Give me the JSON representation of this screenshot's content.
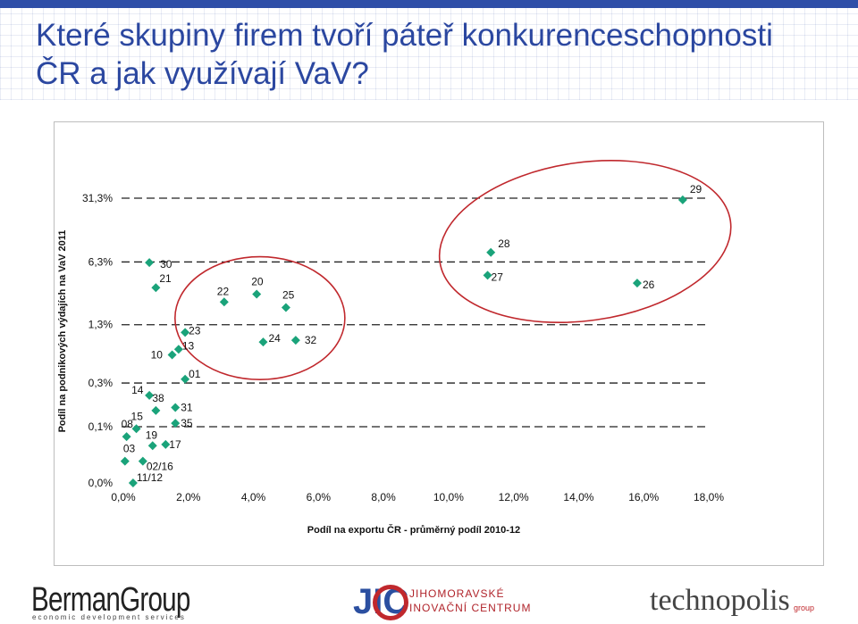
{
  "header": {
    "title": "Které skupiny firem tvoří páteř konkurenceschopnosti ČR a jak využívají VaV?"
  },
  "colors": {
    "title": "#2b47a0",
    "marker": "#1aa37a",
    "ellipse": "#c0282d",
    "gridline": "#222222"
  },
  "chart_data": {
    "type": "scatter",
    "title": "",
    "xlabel": "Podíl na exportu ČR - průměrný podíl 2010-12",
    "ylabel": "Podíl na podnikových výdajích na VaV 2011",
    "xlim": [
      0,
      18
    ],
    "x_ticks": [
      "0,0%",
      "2,0%",
      "4,0%",
      "6,0%",
      "8,0%",
      "10,0%",
      "12,0%",
      "14,0%",
      "16,0%",
      "18,0%"
    ],
    "y_scale": "log",
    "y_ticks": [
      {
        "label": "0,0%",
        "value": 0
      },
      {
        "label": "0,1%",
        "value": 0.1
      },
      {
        "label": "0,3%",
        "value": 0.3
      },
      {
        "label": "1,3%",
        "value": 1.3
      },
      {
        "label": "6,3%",
        "value": 6.3
      },
      {
        "label": "31,3%",
        "value": 31.3
      }
    ],
    "grid": "dashed horizontal",
    "points": [
      {
        "label": "29",
        "x": 17.2,
        "y": 30.0
      },
      {
        "label": "28",
        "x": 11.3,
        "y": 8.0
      },
      {
        "label": "27",
        "x": 11.2,
        "y": 4.5
      },
      {
        "label": "26",
        "x": 15.8,
        "y": 3.7
      },
      {
        "label": "30",
        "x": 0.8,
        "y": 6.2
      },
      {
        "label": "21",
        "x": 1.0,
        "y": 3.3
      },
      {
        "label": "22",
        "x": 3.1,
        "y": 2.3
      },
      {
        "label": "20",
        "x": 4.1,
        "y": 2.8
      },
      {
        "label": "25",
        "x": 5.0,
        "y": 2.0
      },
      {
        "label": "23",
        "x": 1.9,
        "y": 1.07
      },
      {
        "label": "24",
        "x": 4.3,
        "y": 0.84
      },
      {
        "label": "32",
        "x": 5.3,
        "y": 0.88
      },
      {
        "label": "13",
        "x": 1.7,
        "y": 0.7
      },
      {
        "label": "10",
        "x": 1.5,
        "y": 0.61
      },
      {
        "label": "01",
        "x": 1.9,
        "y": 0.33
      },
      {
        "label": "14",
        "x": 0.8,
        "y": 0.22
      },
      {
        "label": "38",
        "x": 1.0,
        "y": 0.15
      },
      {
        "label": "31",
        "x": 1.6,
        "y": 0.162
      },
      {
        "label": "35",
        "x": 1.6,
        "y": 0.109
      },
      {
        "label": "15",
        "x": 0.4,
        "y": 0.095
      },
      {
        "label": "08",
        "x": 0.1,
        "y": 0.078
      },
      {
        "label": "19",
        "x": 0.9,
        "y": 0.062
      },
      {
        "label": "17",
        "x": 1.3,
        "y": 0.064
      },
      {
        "label": "03",
        "x": 0.05,
        "y": 0.042
      },
      {
        "label": "02/16",
        "x": 0.6,
        "y": 0.042
      },
      {
        "label": "11/12",
        "x": 0.3,
        "y": 0.0
      }
    ],
    "annotations": [
      {
        "type": "ellipse",
        "encloses": [
          "22",
          "20",
          "25",
          "24",
          "32"
        ]
      },
      {
        "type": "ellipse",
        "encloses": [
          "29",
          "28",
          "27",
          "26"
        ]
      }
    ]
  },
  "logos": {
    "bermangroup": {
      "name": "BermanGroup",
      "tagline": "economic development services"
    },
    "jic": {
      "letters": "JIC",
      "line1": "JIHOMORAVSKÉ",
      "line2": "INOVAČNÍ CENTRUM"
    },
    "technopolis": {
      "name": "technopolis",
      "group": "group"
    }
  }
}
